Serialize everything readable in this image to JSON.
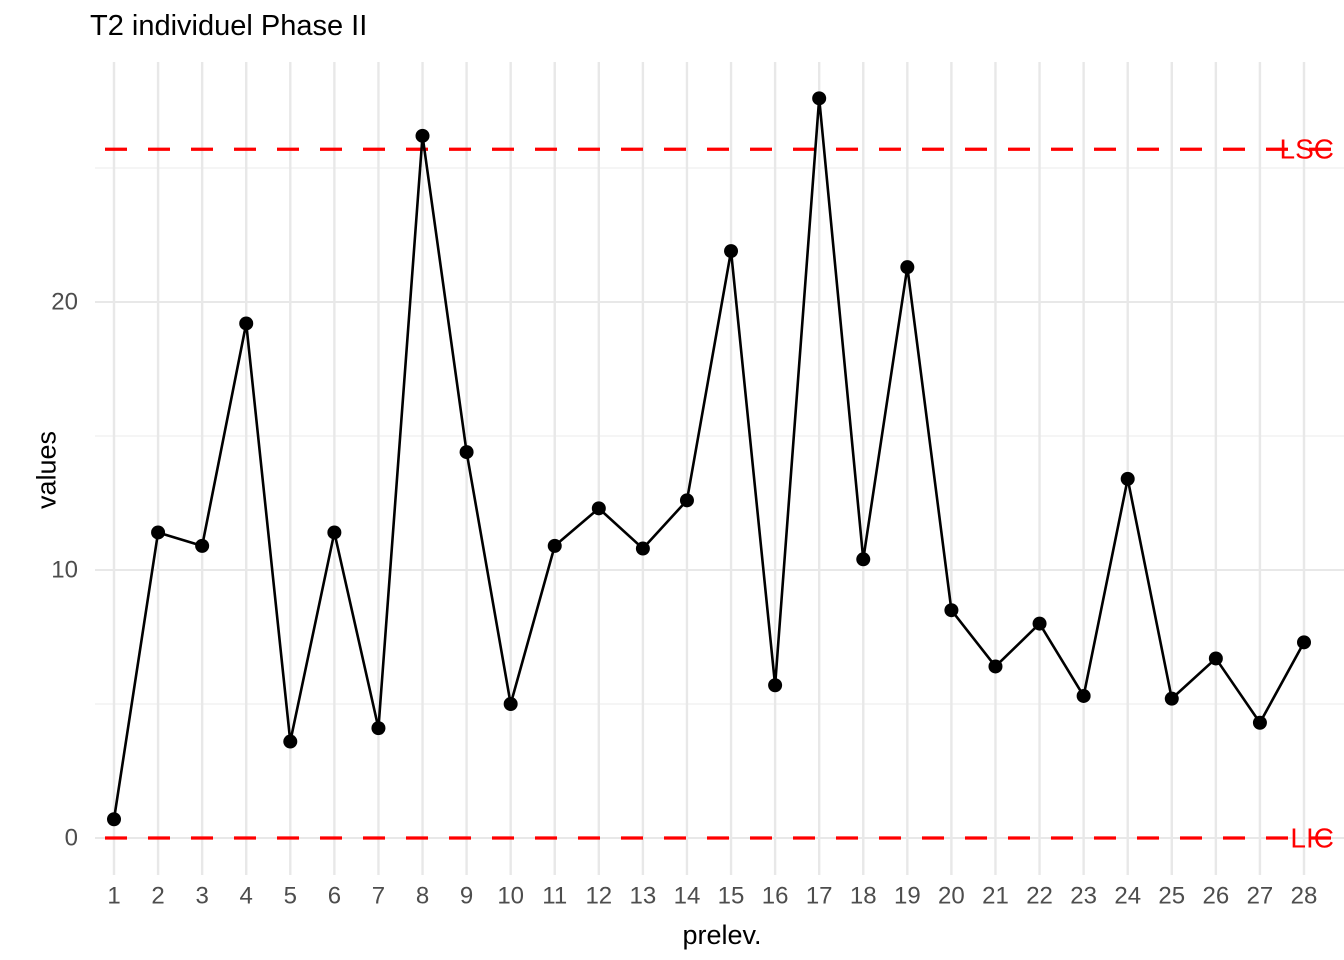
{
  "chart_data": {
    "type": "line",
    "title": "T2 individuel Phase II",
    "xlabel": "prelev.",
    "ylabel": "values",
    "x": [
      1,
      2,
      3,
      4,
      5,
      6,
      7,
      8,
      9,
      10,
      11,
      12,
      13,
      14,
      15,
      16,
      17,
      18,
      19,
      20,
      21,
      22,
      23,
      24,
      25,
      26,
      27,
      28
    ],
    "values": [
      0.7,
      11.4,
      10.9,
      19.2,
      3.6,
      11.4,
      4.1,
      26.2,
      14.4,
      5.0,
      10.9,
      12.3,
      10.8,
      12.6,
      21.9,
      5.7,
      27.6,
      10.4,
      21.3,
      8.5,
      6.4,
      8.0,
      5.3,
      13.4,
      5.2,
      6.7,
      4.3,
      7.3
    ],
    "yticks": [
      0,
      10,
      20
    ],
    "yminor": [
      5,
      15,
      25
    ],
    "ylim": [
      -1.4,
      29.0
    ],
    "grid": true,
    "legend_position": "none",
    "control_lines": [
      {
        "label": "LSC",
        "value": 25.7
      },
      {
        "label": "LIC",
        "value": 0
      }
    ],
    "colors": {
      "line": "#000000",
      "point": "#000000",
      "grid_major": "#E8E8E8",
      "grid_minor": "#F2F2F2",
      "tick_label": "#4D4D4D",
      "control_line": "#FF0000",
      "title": "#000000"
    }
  }
}
